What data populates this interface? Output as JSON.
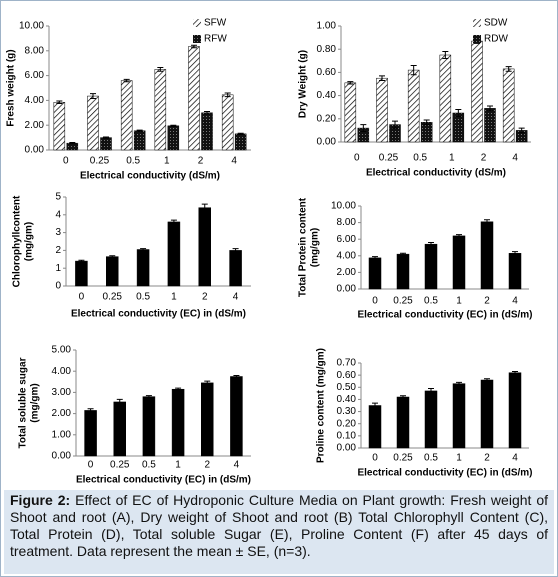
{
  "chart_data": [
    {
      "type": "bar",
      "ylabel": [
        "Fresh weight (g)"
      ],
      "xlabel": "Electrical conductivity (dS/m)",
      "categories": [
        "0",
        "0.25",
        "0.5",
        "1",
        "2",
        "4"
      ],
      "legend": "upper right",
      "series": [
        {
          "name": "SFW",
          "color": "#000000",
          "pattern": "hatch",
          "values": [
            3.85,
            4.35,
            5.6,
            6.5,
            8.35,
            4.45
          ],
          "errors": [
            0.1,
            0.2,
            0.1,
            0.15,
            0.1,
            0.15
          ]
        },
        {
          "name": "RFW",
          "color": "#000000",
          "pattern": "dots",
          "values": [
            0.55,
            1.0,
            1.55,
            1.95,
            3.0,
            1.3
          ],
          "errors": [
            0.05,
            0.05,
            0.05,
            0.05,
            0.1,
            0.05
          ]
        }
      ],
      "ylim": [
        0,
        10
      ],
      "yticks": [
        {
          "value": 0,
          "label": "0.00"
        },
        {
          "value": 2,
          "label": "2.00"
        },
        {
          "value": 4,
          "label": "4.00"
        },
        {
          "value": 6,
          "label": "6.00"
        },
        {
          "value": 8,
          "label": "8.00"
        },
        {
          "value": 10,
          "label": "10.00"
        }
      ]
    },
    {
      "type": "bar",
      "ylabel": [
        "Dry Weight (g)"
      ],
      "xlabel": "Electrical conductivity (dS/m)",
      "categories": [
        "0",
        "0.25",
        "0.5",
        "1",
        "2",
        "4"
      ],
      "legend": "upper right",
      "series": [
        {
          "name": "SDW",
          "color": "#000000",
          "pattern": "hatch",
          "values": [
            0.51,
            0.55,
            0.62,
            0.75,
            0.87,
            0.63
          ],
          "errors": [
            0.01,
            0.02,
            0.04,
            0.03,
            0.02,
            0.02
          ]
        },
        {
          "name": "RDW",
          "color": "#000000",
          "pattern": "dots",
          "values": [
            0.12,
            0.15,
            0.17,
            0.25,
            0.29,
            0.1
          ],
          "errors": [
            0.03,
            0.03,
            0.02,
            0.03,
            0.02,
            0.02
          ]
        }
      ],
      "ylim": [
        0,
        1
      ],
      "yticks": [
        {
          "value": 0,
          "label": "0.00"
        },
        {
          "value": 0.2,
          "label": "0.20"
        },
        {
          "value": 0.4,
          "label": "0.40"
        },
        {
          "value": 0.6,
          "label": "0.60"
        },
        {
          "value": 0.8,
          "label": "0.80"
        },
        {
          "value": 1,
          "label": "1.00"
        }
      ]
    },
    {
      "type": "bar",
      "ylabel": [
        "Chlorophyllcontent",
        "(mg/gm)"
      ],
      "xlabel": "Electrical conductivity (EC) in (dS/m)",
      "categories": [
        "0",
        "0.25",
        "0.5",
        "1",
        "2",
        "4"
      ],
      "series": [
        {
          "color": "#000000",
          "values": [
            1.4,
            1.65,
            2.05,
            3.6,
            4.4,
            2.0
          ],
          "errors": [
            0.05,
            0.05,
            0.05,
            0.1,
            0.2,
            0.1
          ]
        }
      ],
      "ylim": [
        0,
        5
      ],
      "yticks": [
        0,
        1,
        2,
        3,
        4,
        5
      ]
    },
    {
      "type": "bar",
      "ylabel": [
        "Total Protein  content",
        "(mg/gm)"
      ],
      "xlabel": "Electrical conductivity (EC) in (dS/m)",
      "categories": [
        "0",
        "0.25",
        "0.5",
        "1",
        "2",
        "4"
      ],
      "series": [
        {
          "color": "#000000",
          "values": [
            3.75,
            4.2,
            5.4,
            6.4,
            8.1,
            4.3
          ],
          "errors": [
            0.15,
            0.1,
            0.2,
            0.15,
            0.25,
            0.2
          ]
        }
      ],
      "ylim": [
        0,
        10
      ],
      "yticks": [
        {
          "value": 0,
          "label": "0.00"
        },
        {
          "value": 2,
          "label": "2.00"
        },
        {
          "value": 4,
          "label": "4.00"
        },
        {
          "value": 6,
          "label": "6.00"
        },
        {
          "value": 8,
          "label": "8.00"
        },
        {
          "value": 10,
          "label": "10.00"
        }
      ]
    },
    {
      "type": "bar",
      "ylabel": [
        "Total soluble sugar",
        "(mg/gm)"
      ],
      "xlabel": "Electrical conductivity (EC) in (dS/m)",
      "categories": [
        "0",
        "0.25",
        "0.5",
        "1",
        "2",
        "4"
      ],
      "series": [
        {
          "color": "#000000",
          "values": [
            2.15,
            2.55,
            2.8,
            3.15,
            3.45,
            3.75
          ],
          "errors": [
            0.08,
            0.12,
            0.05,
            0.05,
            0.08,
            0.05
          ]
        }
      ],
      "ylim": [
        0,
        5
      ],
      "yticks": [
        {
          "value": 0,
          "label": "0.00"
        },
        {
          "value": 1,
          "label": "1.00"
        },
        {
          "value": 2,
          "label": "2.00"
        },
        {
          "value": 3,
          "label": "3.00"
        },
        {
          "value": 4,
          "label": "4.00"
        },
        {
          "value": 5,
          "label": "5.00"
        }
      ]
    },
    {
      "type": "bar",
      "ylabel": [
        "Proline content (mg/gm)"
      ],
      "xlabel": "Electrical conductivity (EC) in (dS/m)",
      "categories": [
        "0",
        "0.25",
        "0.5",
        "1",
        "2",
        "4"
      ],
      "series": [
        {
          "color": "#000000",
          "values": [
            0.35,
            0.42,
            0.47,
            0.53,
            0.56,
            0.62
          ],
          "errors": [
            0.02,
            0.01,
            0.02,
            0.01,
            0.01,
            0.01
          ]
        }
      ],
      "ylim": [
        0,
        0.7
      ],
      "yticks": [
        {
          "value": 0,
          "label": "0.00"
        },
        {
          "value": 0.1,
          "label": "0.10"
        },
        {
          "value": 0.2,
          "label": "0.20"
        },
        {
          "value": 0.3,
          "label": "0.30"
        },
        {
          "value": 0.4,
          "label": "0.40"
        },
        {
          "value": 0.5,
          "label": "0.50"
        },
        {
          "value": 0.6,
          "label": "0.60"
        },
        {
          "value": 0.7,
          "label": "0.70"
        }
      ]
    }
  ],
  "caption": {
    "label": "Figure 2:",
    "text": "Effect of EC of Hydroponic Culture Media on Plant growth: Fresh weight of Shoot and root (A), Dry weight of Shoot and root (B) Total Chlorophyll Content (C), Total Protein (D), Total soluble Sugar (E), Proline Content (F) after 45 days of treatment. Data represent the mean ± SE, (n=3)."
  }
}
